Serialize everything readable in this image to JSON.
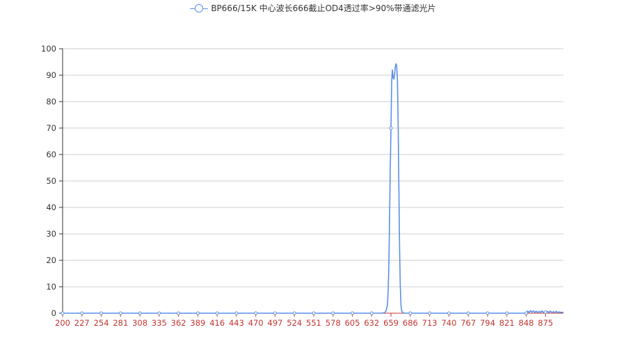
{
  "chart_data": {
    "type": "line",
    "title": "",
    "xlabel": "",
    "ylabel": "",
    "legend_position": "top",
    "grid": true,
    "ylim": [
      0,
      100
    ],
    "xlim": [
      200,
      900
    ],
    "y_ticks": [
      0,
      10,
      20,
      30,
      40,
      50,
      60,
      70,
      80,
      90,
      100
    ],
    "x_tick_labels": [
      200,
      227,
      254,
      281,
      308,
      335,
      362,
      389,
      416,
      443,
      470,
      497,
      524,
      551,
      578,
      605,
      632,
      659,
      686,
      713,
      740,
      767,
      794,
      821,
      848,
      875
    ],
    "colors": {
      "series": "#5B8FE8",
      "x_axis": "#c23531",
      "grid": "#cccccc"
    },
    "series": [
      {
        "name": "BP666/15K 中心波长666截止OD4透过率>90%带通滤光片",
        "x": [
          200,
          227,
          254,
          281,
          308,
          335,
          362,
          389,
          416,
          443,
          470,
          497,
          524,
          551,
          578,
          605,
          632,
          645,
          650,
          652,
          654,
          655,
          656,
          657,
          658,
          659,
          660,
          661,
          662,
          663,
          664,
          665,
          666,
          667,
          668,
          669,
          670,
          671,
          672,
          673,
          674,
          676,
          678,
          686,
          713,
          740,
          767,
          794,
          821,
          848,
          850,
          852,
          854,
          856,
          858,
          860,
          862,
          864,
          866,
          868,
          870,
          872,
          874,
          876,
          878,
          880,
          882,
          884,
          886,
          888,
          890,
          892,
          894,
          896,
          898,
          900
        ],
        "y": [
          0,
          0,
          0,
          0,
          0,
          0,
          0,
          0,
          0,
          0,
          0,
          0,
          0,
          0,
          0,
          0,
          0,
          0,
          0.2,
          0.8,
          3,
          8,
          18,
          35,
          55,
          70,
          88,
          92,
          89,
          88.5,
          90,
          93,
          94.3,
          93.5,
          88,
          72,
          48,
          25,
          10,
          3,
          0.8,
          0.2,
          0,
          0,
          0,
          0,
          0,
          0,
          0,
          0,
          0.8,
          0.3,
          1,
          0.4,
          0.9,
          0.3,
          0.8,
          0.2,
          0.7,
          0.3,
          0.9,
          0.3,
          0.6,
          0.2,
          0.7,
          0.3,
          0.8,
          0.2,
          0.6,
          0.3,
          0.7,
          0.2,
          0.5,
          0.3,
          0.4,
          0.2
        ],
        "markers_at": [
          200,
          227,
          254,
          281,
          308,
          335,
          362,
          389,
          416,
          443,
          470,
          497,
          524,
          551,
          578,
          605,
          632,
          659,
          686,
          713,
          740,
          767,
          794,
          821,
          848,
          875
        ]
      }
    ]
  }
}
